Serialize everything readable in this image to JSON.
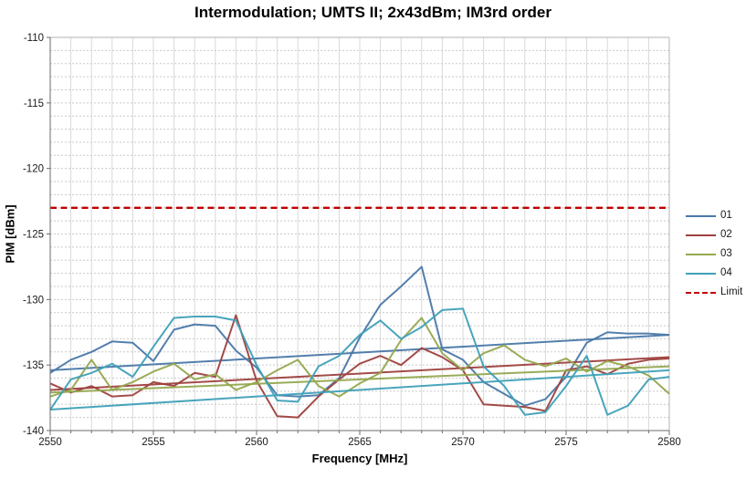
{
  "title": "Intermodulation; UMTS II; 2x43dBm; IM3rd order",
  "colors": {
    "background": "#ffffff",
    "axis_line": "#6b6b6b",
    "plot_border": "#b3b3b3",
    "grid_vertical": "#d9d9d9",
    "grid_horizontal": "#c9c9c9",
    "tick_text": "#1a1a1a",
    "series_01": "#4a78a8",
    "series_02": "#9e413e",
    "series_03": "#94a84e",
    "series_04": "#3fa0b8",
    "limit": "#c00000"
  },
  "chart_data": {
    "type": "line",
    "title": "Intermodulation; UMTS II; 2x43dBm; IM3rd order",
    "xlabel": "Frequency [MHz]",
    "ylabel": "PIM [dBm]",
    "xlim": [
      2550,
      2580
    ],
    "ylim": [
      -140,
      -110
    ],
    "x_tick_labels": [
      "2550",
      "2555",
      "2560",
      "2565",
      "2570",
      "2575",
      "2580"
    ],
    "x_ticks": [
      2550,
      2555,
      2560,
      2565,
      2570,
      2575,
      2580
    ],
    "y_tick_labels": [
      "-110",
      "-115",
      "-120",
      "-125",
      "-130",
      "-135",
      "-140"
    ],
    "y_ticks": [
      -110,
      -115,
      -120,
      -125,
      -130,
      -135,
      -140
    ],
    "minor_grid_step_x_mhz": 1,
    "minor_grid_step_y_db": 1,
    "grid": true,
    "legend_position": "right",
    "x": [
      2550,
      2551,
      2552,
      2553,
      2554,
      2555,
      2556,
      2557,
      2558,
      2559,
      2560,
      2561,
      2562,
      2563,
      2564,
      2565,
      2566,
      2567,
      2568,
      2569,
      2570,
      2571,
      2572,
      2573,
      2574,
      2575,
      2576,
      2577,
      2578,
      2579,
      2580
    ],
    "series": [
      {
        "name": "01",
        "color": "#4a78a8",
        "dash": false,
        "values": [
          -135.6,
          -134.6,
          -134.0,
          -133.2,
          -133.3,
          -134.7,
          -132.3,
          -131.9,
          -132.0,
          -133.9,
          -135.2,
          -137.3,
          -137.4,
          -137.3,
          -136.0,
          -132.9,
          -130.4,
          -129.0,
          -127.5,
          -133.8,
          -134.6,
          -136.3,
          -137.2,
          -138.1,
          -137.6,
          -135.9,
          -133.3,
          -132.5,
          -132.6,
          -132.6,
          -132.7
        ],
        "trend": [
          -135.4,
          -132.7
        ]
      },
      {
        "name": "02",
        "color": "#9e413e",
        "dash": false,
        "values": [
          -136.4,
          -137.1,
          -136.6,
          -137.4,
          -137.3,
          -136.3,
          -136.6,
          -135.6,
          -135.9,
          -131.2,
          -136.2,
          -138.9,
          -139.0,
          -137.4,
          -136.1,
          -134.9,
          -134.3,
          -135.0,
          -133.7,
          -134.4,
          -135.4,
          -138.0,
          -138.1,
          -138.2,
          -138.5,
          -135.4,
          -135.1,
          -135.7,
          -134.9,
          -134.6,
          -134.5
        ],
        "trend": [
          -136.9,
          -134.4
        ]
      },
      {
        "name": "03",
        "color": "#94a84e",
        "dash": false,
        "values": [
          -137.4,
          -136.9,
          -134.6,
          -136.9,
          -136.3,
          -135.5,
          -134.9,
          -136.1,
          -135.7,
          -136.9,
          -136.3,
          -135.4,
          -134.6,
          -136.6,
          -137.4,
          -136.4,
          -135.6,
          -133.1,
          -131.4,
          -134.1,
          -135.4,
          -134.1,
          -133.5,
          -134.6,
          -135.1,
          -134.5,
          -135.5,
          -134.7,
          -135.1,
          -135.8,
          -137.2
        ],
        "trend": [
          -137.1,
          -135.1
        ]
      },
      {
        "name": "04",
        "color": "#3fa0b8",
        "dash": false,
        "values": [
          -138.4,
          -136.1,
          -135.6,
          -134.9,
          -135.9,
          -133.6,
          -131.4,
          -131.3,
          -131.3,
          -131.6,
          -135.0,
          -137.7,
          -137.8,
          -135.1,
          -134.3,
          -132.7,
          -131.6,
          -133.0,
          -132.1,
          -130.8,
          -130.7,
          -135.1,
          -136.6,
          -138.8,
          -138.6,
          -136.6,
          -134.3,
          -138.8,
          -138.1,
          -136.1,
          -135.9
        ],
        "trend": [
          -138.4,
          -135.4
        ]
      },
      {
        "name": "Limit",
        "color": "#c00000",
        "dash": true,
        "constant": -123
      }
    ]
  }
}
